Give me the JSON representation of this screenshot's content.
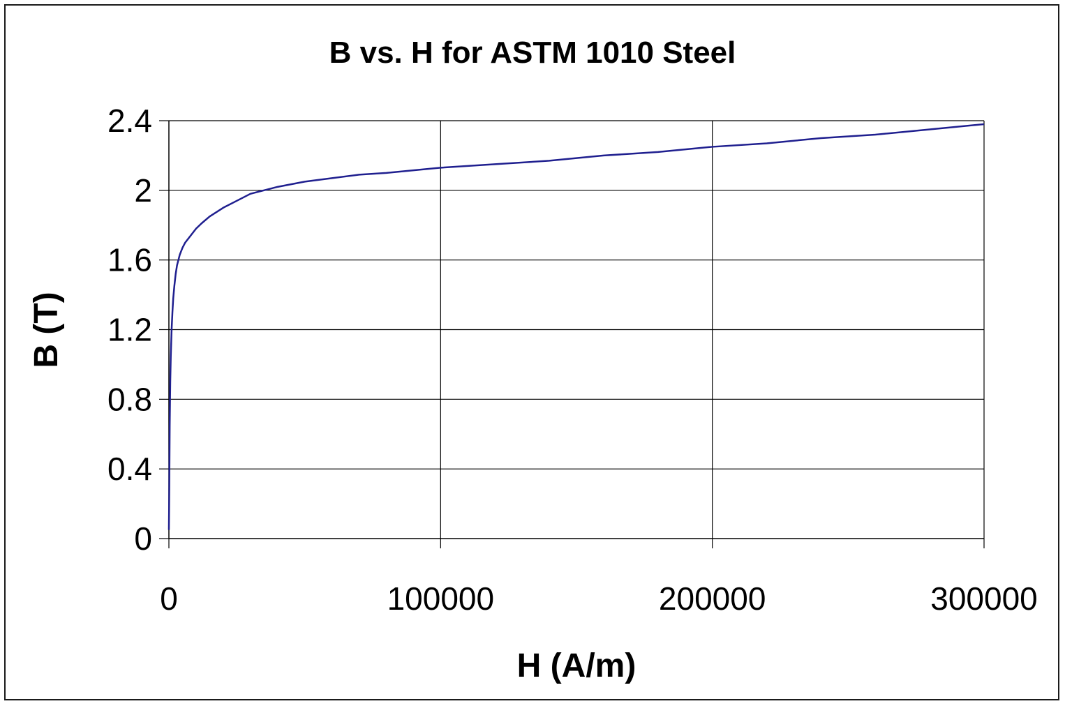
{
  "chart_data": {
    "type": "line",
    "title": "B vs. H for ASTM 1010 Steel",
    "xlabel": "H (A/m)",
    "ylabel": "B (T)",
    "xlim": [
      0,
      300000
    ],
    "ylim": [
      0,
      2.4
    ],
    "x_ticks": [
      "0",
      "100000",
      "200000",
      "300000"
    ],
    "y_ticks": [
      "0",
      "0.4",
      "0.8",
      "1.2",
      "1.6",
      "2",
      "2.4"
    ],
    "x_tick_values": [
      0,
      100000,
      200000,
      300000
    ],
    "y_tick_values": [
      0,
      0.4,
      0.8,
      1.2,
      1.6,
      2.0,
      2.4
    ],
    "grid": true,
    "line_color": "#1f1f8f",
    "series": [
      {
        "x": [
          0,
          150,
          300,
          500,
          700,
          1000,
          1300,
          1600,
          2000,
          2500,
          3000,
          4000,
          5000,
          6000,
          8000,
          10000,
          12000,
          15000,
          18000,
          20000,
          25000,
          30000,
          35000,
          40000,
          50000,
          60000,
          70000,
          80000,
          100000,
          120000,
          140000,
          160000,
          180000,
          200000,
          220000,
          240000,
          260000,
          280000,
          300000
        ],
        "y": [
          0.05,
          0.3,
          0.65,
          0.9,
          1.05,
          1.2,
          1.3,
          1.38,
          1.45,
          1.52,
          1.57,
          1.63,
          1.67,
          1.7,
          1.74,
          1.78,
          1.81,
          1.85,
          1.88,
          1.9,
          1.94,
          1.98,
          2.0,
          2.02,
          2.05,
          2.07,
          2.09,
          2.1,
          2.13,
          2.15,
          2.17,
          2.2,
          2.22,
          2.25,
          2.27,
          2.3,
          2.32,
          2.35,
          2.38
        ]
      }
    ]
  }
}
